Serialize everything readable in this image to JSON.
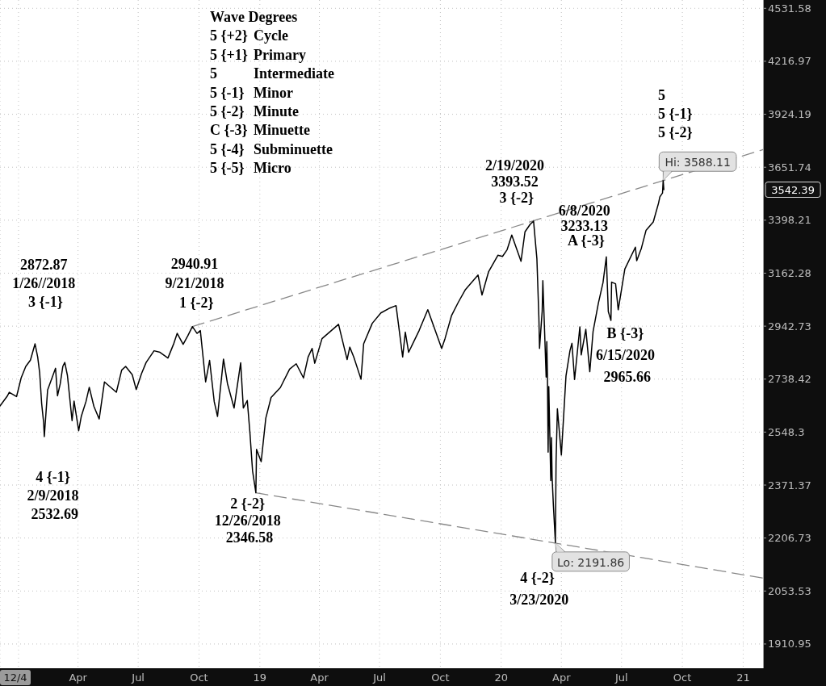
{
  "chart_data": {
    "type": "line",
    "log": "y",
    "grid": true,
    "xlim": [
      "2017-12-04",
      "2021-01-31"
    ],
    "xticks": [
      {
        "value": "2017-12-04",
        "label": "12/4"
      },
      {
        "value": "2018-01-01",
        "label": null
      },
      {
        "value": "2018-04-01",
        "label": "Apr"
      },
      {
        "value": "2018-07-01",
        "label": "Jul"
      },
      {
        "value": "2018-10-01",
        "label": "Oct"
      },
      {
        "value": "2019-01-01",
        "label": "19"
      },
      {
        "value": "2019-04-01",
        "label": "Apr"
      },
      {
        "value": "2019-07-01",
        "label": "Jul"
      },
      {
        "value": "2019-10-01",
        "label": "Oct"
      },
      {
        "value": "2020-01-01",
        "label": "20"
      },
      {
        "value": "2020-04-01",
        "label": "Apr"
      },
      {
        "value": "2020-07-01",
        "label": "Jul"
      },
      {
        "value": "2020-10-01",
        "label": "Oct"
      },
      {
        "value": "2021-01-01",
        "label": "21"
      }
    ],
    "ylim": [
      1849,
      4583
    ],
    "yticks": [
      1910.95,
      2053.53,
      2206.73,
      2371.37,
      2548.3,
      2738.42,
      2942.73,
      3162.28,
      3398.21,
      3651.74,
      3924.19,
      4216.97,
      4531.58
    ],
    "series": [
      {
        "color": "#000000",
        "x": [
          "2017-12-04",
          "2017-12-15",
          "2017-12-18",
          "2017-12-29",
          "2018-01-05",
          "2018-01-12",
          "2018-01-19",
          "2018-01-26",
          "2018-01-30",
          "2018-02-02",
          "2018-02-05",
          "2018-02-08",
          "2018-02-09",
          "2018-02-14",
          "2018-02-26",
          "2018-03-01",
          "2018-03-05",
          "2018-03-09",
          "2018-03-12",
          "2018-03-16",
          "2018-03-23",
          "2018-03-26",
          "2018-04-02",
          "2018-04-06",
          "2018-04-13",
          "2018-04-18",
          "2018-04-25",
          "2018-05-03",
          "2018-05-11",
          "2018-05-18",
          "2018-05-29",
          "2018-06-06",
          "2018-06-12",
          "2018-06-22",
          "2018-06-28",
          "2018-07-06",
          "2018-07-13",
          "2018-07-25",
          "2018-08-03",
          "2018-08-15",
          "2018-08-24",
          "2018-08-29",
          "2018-09-07",
          "2018-09-14",
          "2018-09-21",
          "2018-09-28",
          "2018-10-03",
          "2018-10-11",
          "2018-10-17",
          "2018-10-24",
          "2018-10-29",
          "2018-11-07",
          "2018-11-13",
          "2018-11-23",
          "2018-12-03",
          "2018-12-07",
          "2018-12-13",
          "2018-12-17",
          "2018-12-21",
          "2018-12-26",
          "2018-12-27",
          "2019-01-03",
          "2019-01-10",
          "2019-01-18",
          "2019-02-01",
          "2019-02-15",
          "2019-02-25",
          "2019-03-08",
          "2019-03-15",
          "2019-03-21",
          "2019-03-25",
          "2019-04-05",
          "2019-04-30",
          "2019-05-13",
          "2019-05-17",
          "2019-05-23",
          "2019-06-03",
          "2019-06-07",
          "2019-06-20",
          "2019-07-03",
          "2019-07-15",
          "2019-07-26",
          "2019-08-05",
          "2019-08-09",
          "2019-08-14",
          "2019-08-30",
          "2019-09-12",
          "2019-10-03",
          "2019-10-08",
          "2019-10-18",
          "2019-10-28",
          "2019-11-08",
          "2019-11-27",
          "2019-12-03",
          "2019-12-13",
          "2019-12-27",
          "2020-01-03",
          "2020-01-10",
          "2020-01-17",
          "2020-01-31",
          "2020-02-06",
          "2020-02-14",
          "2020-02-19",
          "2020-02-24",
          "2020-02-27",
          "2020-02-28",
          "2020-03-03",
          "2020-03-04",
          "2020-03-06",
          "2020-03-09",
          "2020-03-10",
          "2020-03-11",
          "2020-03-12",
          "2020-03-13",
          "2020-03-16",
          "2020-03-17",
          "2020-03-18",
          "2020-03-20",
          "2020-03-23",
          "2020-03-24",
          "2020-03-26",
          "2020-04-01",
          "2020-04-08",
          "2020-04-14",
          "2020-04-17",
          "2020-04-21",
          "2020-04-29",
          "2020-05-01",
          "2020-05-08",
          "2020-05-14",
          "2020-05-19",
          "2020-05-27",
          "2020-06-03",
          "2020-06-08",
          "2020-06-11",
          "2020-06-15",
          "2020-06-16",
          "2020-06-22",
          "2020-06-26",
          "2020-07-06",
          "2020-07-22",
          "2020-07-24",
          "2020-07-31",
          "2020-08-07",
          "2020-08-18",
          "2020-08-26",
          "2020-08-28",
          "2020-09-01",
          "2020-09-02",
          "2020-09-03"
        ],
        "values": [
          2640,
          2676,
          2690,
          2674,
          2743,
          2786,
          2810,
          2872.87,
          2822,
          2762,
          2649,
          2581,
          2532.69,
          2698,
          2779,
          2677,
          2720,
          2786,
          2801,
          2752,
          2588,
          2658,
          2553,
          2604,
          2656,
          2708,
          2639,
          2594,
          2728,
          2713,
          2690,
          2772,
          2786,
          2755,
          2700,
          2759,
          2801,
          2846,
          2840,
          2818,
          2875,
          2914,
          2871,
          2904,
          2940.91,
          2914,
          2925,
          2728,
          2809,
          2656,
          2603,
          2814,
          2722,
          2633,
          2800,
          2633,
          2660,
          2546,
          2417,
          2346.58,
          2489,
          2448,
          2597,
          2671,
          2707,
          2776,
          2796,
          2743,
          2822,
          2855,
          2798,
          2893,
          2950,
          2812,
          2860,
          2822,
          2738,
          2873,
          2954,
          2996,
          3014,
          3026,
          2822,
          2919,
          2840,
          2926,
          3009,
          2855,
          2893,
          2986,
          3039,
          3093,
          3154,
          3070,
          3169,
          3240,
          3235,
          3265,
          3330,
          3214,
          3345,
          3380,
          3393.52,
          3225,
          2978,
          2855,
          3003,
          3130,
          2972,
          2746,
          2882,
          2741,
          2480,
          2711,
          2386,
          2529,
          2398,
          2305,
          2191.86,
          2447,
          2630,
          2470,
          2750,
          2846,
          2875,
          2737,
          2940,
          2830,
          2930,
          2766,
          2922,
          3036,
          3122,
          3233.13,
          3002,
          2965.66,
          3124,
          3117,
          3009,
          3180,
          3276,
          3216,
          3271,
          3351,
          3390,
          3478,
          3508,
          3526,
          3588.11,
          3542.39
        ]
      },
      {
        "type": "line",
        "color": "#888888",
        "line_style": "dashed",
        "x": [
          "2018-09-21",
          "2021-01-31"
        ],
        "values": [
          2940.91,
          3740
        ]
      },
      {
        "type": "line",
        "color": "#888888",
        "line_style": "dashed",
        "x": [
          "2018-12-26",
          "2021-01-31"
        ],
        "values": [
          2346.58,
          2090
        ]
      }
    ],
    "annotations": [
      "Wave Degrees\n5 {+2} Cycle\n5 {+1} Primary\n5 Intermediate\n5 {-1} Minor\n5 {-2} Minute\nC {-3} Minuette\n5 {-4} Subminuette\n5 {-5} Micro",
      {
        "text": "2872.87\n1/26//2018\n3 {-1}",
        "x": "2018-01-26",
        "y": 2872.87
      },
      {
        "text": "4 {-1}\n2/9/2018\n2532.69",
        "x": "2018-02-09",
        "y": 2532.69
      },
      {
        "text": "2940.91\n9/21/2018\n1 {-2}",
        "x": "2018-09-21",
        "y": 2940.91
      },
      {
        "text": "2 {-2}\n12/26/2018\n2346.58",
        "x": "2018-12-26",
        "y": 2346.58
      },
      {
        "text": "2/19/2020\n3393.52\n3 {-2}",
        "x": "2020-02-19",
        "y": 3393.52
      },
      {
        "text": "Lo: 2191.86",
        "x": "2020-03-23",
        "y": 2191.86
      },
      {
        "text": "4 {-2}\n3/23/2020",
        "x": "2020-03-23",
        "y": 2191.86
      },
      {
        "text": "6/8/2020\n3233.13\nA {-3}",
        "x": "2020-06-08",
        "y": 3233.13
      },
      {
        "text": "B {-3}\n6/15/2020\n2965.66",
        "x": "2020-06-15",
        "y": 2965.66
      },
      {
        "text": "Hi: 3588.11",
        "x": "2020-09-02",
        "y": 3588.11
      },
      "5\n5 {-1}\n5 {-2}",
      "3542.39"
    ]
  }
}
